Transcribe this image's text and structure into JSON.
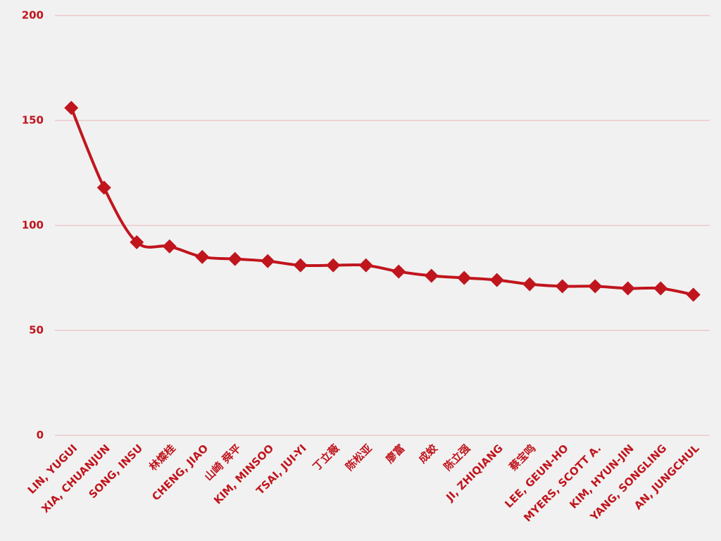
{
  "chart_data": {
    "type": "line",
    "categories": [
      "LIN, YUGUI",
      "XIA, CHUANJUN",
      "SONG, INSU",
      "林燦桂",
      "CHENG, JIAO",
      "山崎 舜平",
      "KIM, MINSOO",
      "TSAI, JUI-YI",
      "丁立薇",
      "陈松亚",
      "廖富",
      "成蛟",
      "陈立强",
      "JI, ZHIQIANG",
      "蔡宝鸣",
      "LEE, GEUN-HO",
      "MYERS, SCOTT A.",
      "KIM, HYUN-JIN",
      "YANG, SONGLING",
      "AN, JUNGCHUL"
    ],
    "values": [
      156,
      118,
      92,
      90,
      85,
      84,
      83,
      81,
      81,
      81,
      78,
      76,
      75,
      74,
      72,
      71,
      71,
      70,
      70,
      67
    ],
    "color": "#c0151d",
    "ylim": [
      0,
      200
    ],
    "yticks": [
      0,
      50,
      100,
      150,
      200
    ],
    "grid": true,
    "smooth": true,
    "marker": "diamond"
  }
}
